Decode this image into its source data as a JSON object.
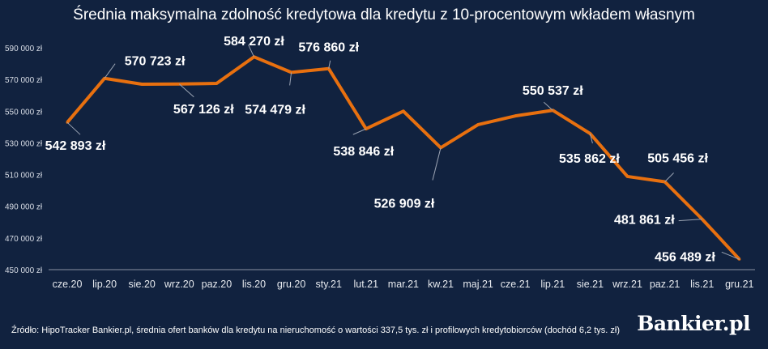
{
  "chart_data": {
    "type": "line",
    "title": "Średnia maksymalna zdolność kredytowa dla kredytu z 10-procentowym wkładem własnym",
    "xlabel": "",
    "ylabel": "",
    "categories": [
      "cze.20",
      "lip.20",
      "sie.20",
      "wrz.20",
      "paz.20",
      "lis.20",
      "gru.20",
      "sty.21",
      "lut.21",
      "mar.21",
      "kw.21",
      "maj.21",
      "cze.21",
      "lip.21",
      "sie.21",
      "wrz.21",
      "paz.21",
      "lis.21",
      "gru.21"
    ],
    "series": [
      {
        "name": "Zdolność kredytowa",
        "color": "#e8700f",
        "values": [
          542893,
          570723,
          567000,
          567126,
          567500,
          584270,
          574479,
          576860,
          538846,
          550000,
          526909,
          541500,
          547000,
          550537,
          535862,
          508800,
          505456,
          481861,
          456489
        ]
      }
    ],
    "data_labels": [
      {
        "index": 0,
        "text": "542 893 zł"
      },
      {
        "index": 1,
        "text": "570 723 zł"
      },
      {
        "index": 3,
        "text": "567 126 zł"
      },
      {
        "index": 5,
        "text": "584 270 zł"
      },
      {
        "index": 6,
        "text": "574 479 zł"
      },
      {
        "index": 7,
        "text": "576 860 zł"
      },
      {
        "index": 8,
        "text": "538 846 zł"
      },
      {
        "index": 10,
        "text": "526 909 zł"
      },
      {
        "index": 13,
        "text": "550 537 zł"
      },
      {
        "index": 14,
        "text": "535 862 zł"
      },
      {
        "index": 16,
        "text": "505 456 zł"
      },
      {
        "index": 17,
        "text": "481 861 zł"
      },
      {
        "index": 18,
        "text": "456 489 zł"
      }
    ],
    "ylim": [
      450000,
      590000
    ],
    "yticks": [
      "450 000 zł",
      "470 000 zł",
      "490 000 zł",
      "510 000 zł",
      "530 000 zł",
      "550 000 zł",
      "570 000 zł",
      "590 000 zł"
    ],
    "grid": false,
    "legend": "none"
  },
  "source": "Źródło: HipoTracker Bankier.pl, średnia ofert banków dla kredytu na nieruchomość o wartości 337,5 tys. zł i profilowych kredytobiorców (dochód 6,2 tys. zł)",
  "logo": "Bankier.pl"
}
